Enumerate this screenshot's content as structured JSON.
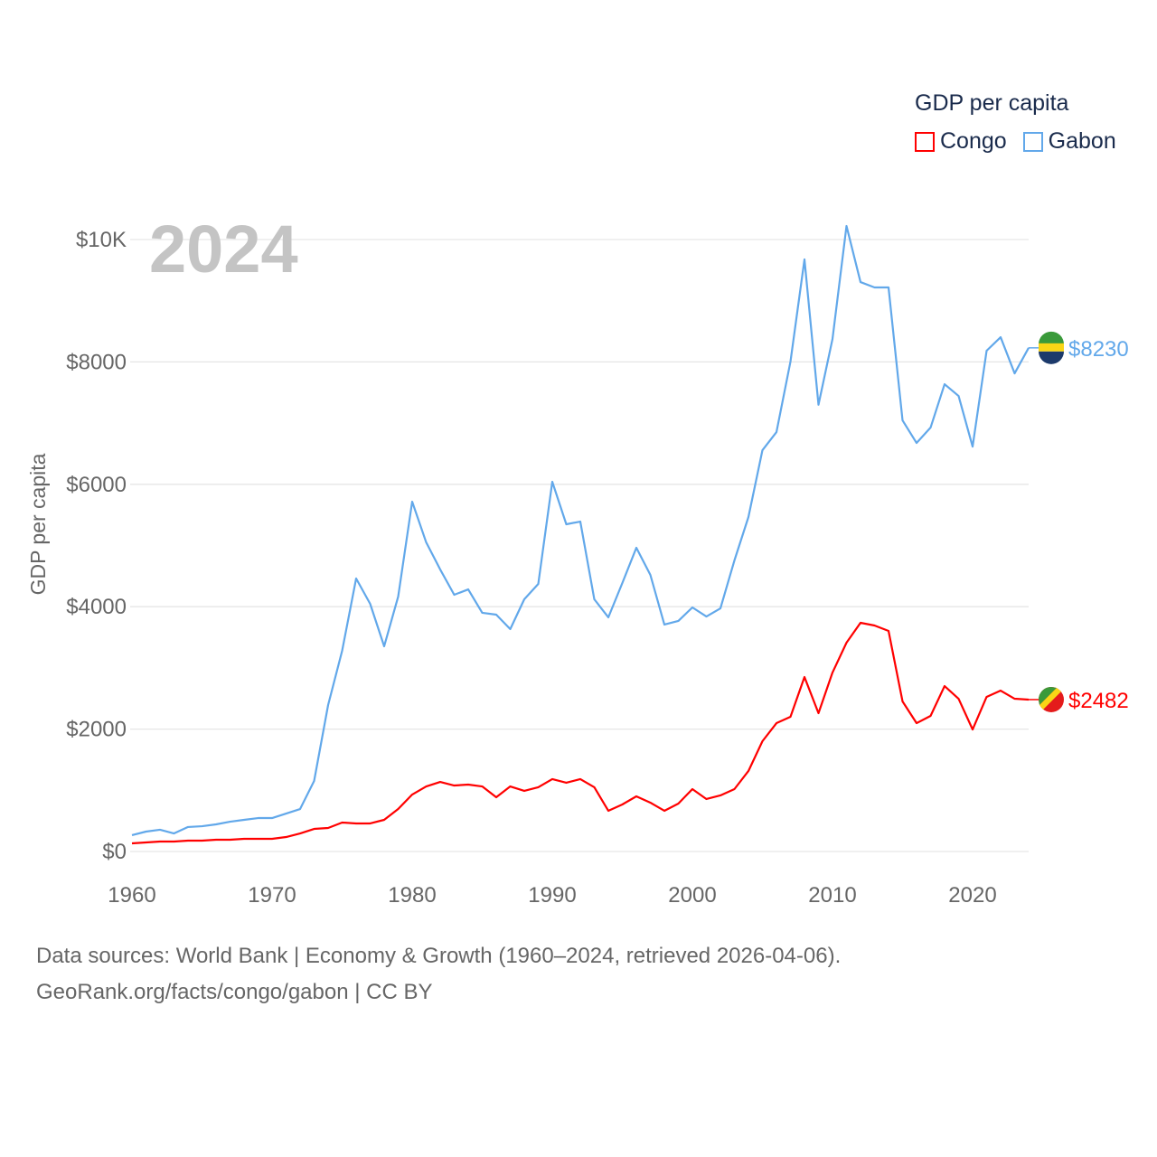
{
  "legend": {
    "title": "GDP per capita",
    "items": [
      {
        "label": "Congo",
        "color": "#ff0000"
      },
      {
        "label": "Gabon",
        "color": "#62a8ea"
      }
    ]
  },
  "footer": {
    "line1": "Data sources: World Bank | Economy & Growth (1960–2024, retrieved 2026-04-06).",
    "line2": "GeoRank.org/facts/congo/gabon | CC BY"
  },
  "chart_data": {
    "type": "line",
    "title": "GDP per capita",
    "year_label": "2024",
    "xlabel": "",
    "ylabel": "GDP per capita",
    "xlim": [
      1960,
      2024
    ],
    "ylim": [
      0,
      10000
    ],
    "x_ticks": [
      1960,
      1970,
      1980,
      1990,
      2000,
      2010,
      2020
    ],
    "y_ticks": [
      {
        "value": 0,
        "label": "$0"
      },
      {
        "value": 2000,
        "label": "$2000"
      },
      {
        "value": 4000,
        "label": "$4000"
      },
      {
        "value": 6000,
        "label": "$6000"
      },
      {
        "value": 8000,
        "label": "$8000"
      },
      {
        "value": 10000,
        "label": "$10K"
      }
    ],
    "grid": true,
    "legend_position": "top-right",
    "x": [
      1960,
      1961,
      1962,
      1963,
      1964,
      1965,
      1966,
      1967,
      1968,
      1969,
      1970,
      1971,
      1972,
      1973,
      1974,
      1975,
      1976,
      1977,
      1978,
      1979,
      1980,
      1981,
      1982,
      1983,
      1984,
      1985,
      1986,
      1987,
      1988,
      1989,
      1990,
      1991,
      1992,
      1993,
      1994,
      1995,
      1996,
      1997,
      1998,
      1999,
      2000,
      2001,
      2002,
      2003,
      2004,
      2005,
      2006,
      2007,
      2008,
      2009,
      2010,
      2011,
      2012,
      2013,
      2014,
      2015,
      2016,
      2017,
      2018,
      2019,
      2020,
      2021,
      2022,
      2023,
      2024
    ],
    "series": [
      {
        "name": "Gabon",
        "color": "#62a8ea",
        "end_label": "$8230",
        "values": [
          266,
          325,
          355,
          295,
          400,
          413,
          443,
          487,
          517,
          546,
          546,
          620,
          694,
          1152,
          2393,
          3279,
          4461,
          4047,
          3353,
          4165,
          5716,
          5051,
          4608,
          4195,
          4283,
          3900,
          3870,
          3634,
          4121,
          4372,
          6041,
          5347,
          5391,
          4121,
          3826,
          4387,
          4963,
          4520,
          3708,
          3767,
          3988,
          3840,
          3973,
          4756,
          5465,
          6558,
          6853,
          8005,
          9675,
          7300,
          8375,
          10221,
          9305,
          9217,
          9217,
          7045,
          6676,
          6927,
          7636,
          7444,
          6617,
          8183,
          8404,
          7813,
          8230
        ]
      },
      {
        "name": "Congo",
        "color": "#ff0000",
        "end_label": "$2482",
        "values": [
          133,
          148,
          162,
          162,
          177,
          177,
          192,
          192,
          207,
          207,
          207,
          236,
          295,
          369,
          384,
          473,
          458,
          458,
          517,
          694,
          930,
          1063,
          1137,
          1078,
          1093,
          1063,
          886,
          1063,
          990,
          1049,
          1182,
          1123,
          1182,
          1049,
          665,
          768,
          901,
          798,
          665,
          783,
          1019,
          857,
          916,
          1019,
          1315,
          1802,
          2097,
          2201,
          2851,
          2260,
          2924,
          3412,
          3737,
          3693,
          3604,
          2452,
          2097,
          2216,
          2703,
          2496,
          1994,
          2526,
          2629,
          2496,
          2482
        ]
      }
    ]
  }
}
